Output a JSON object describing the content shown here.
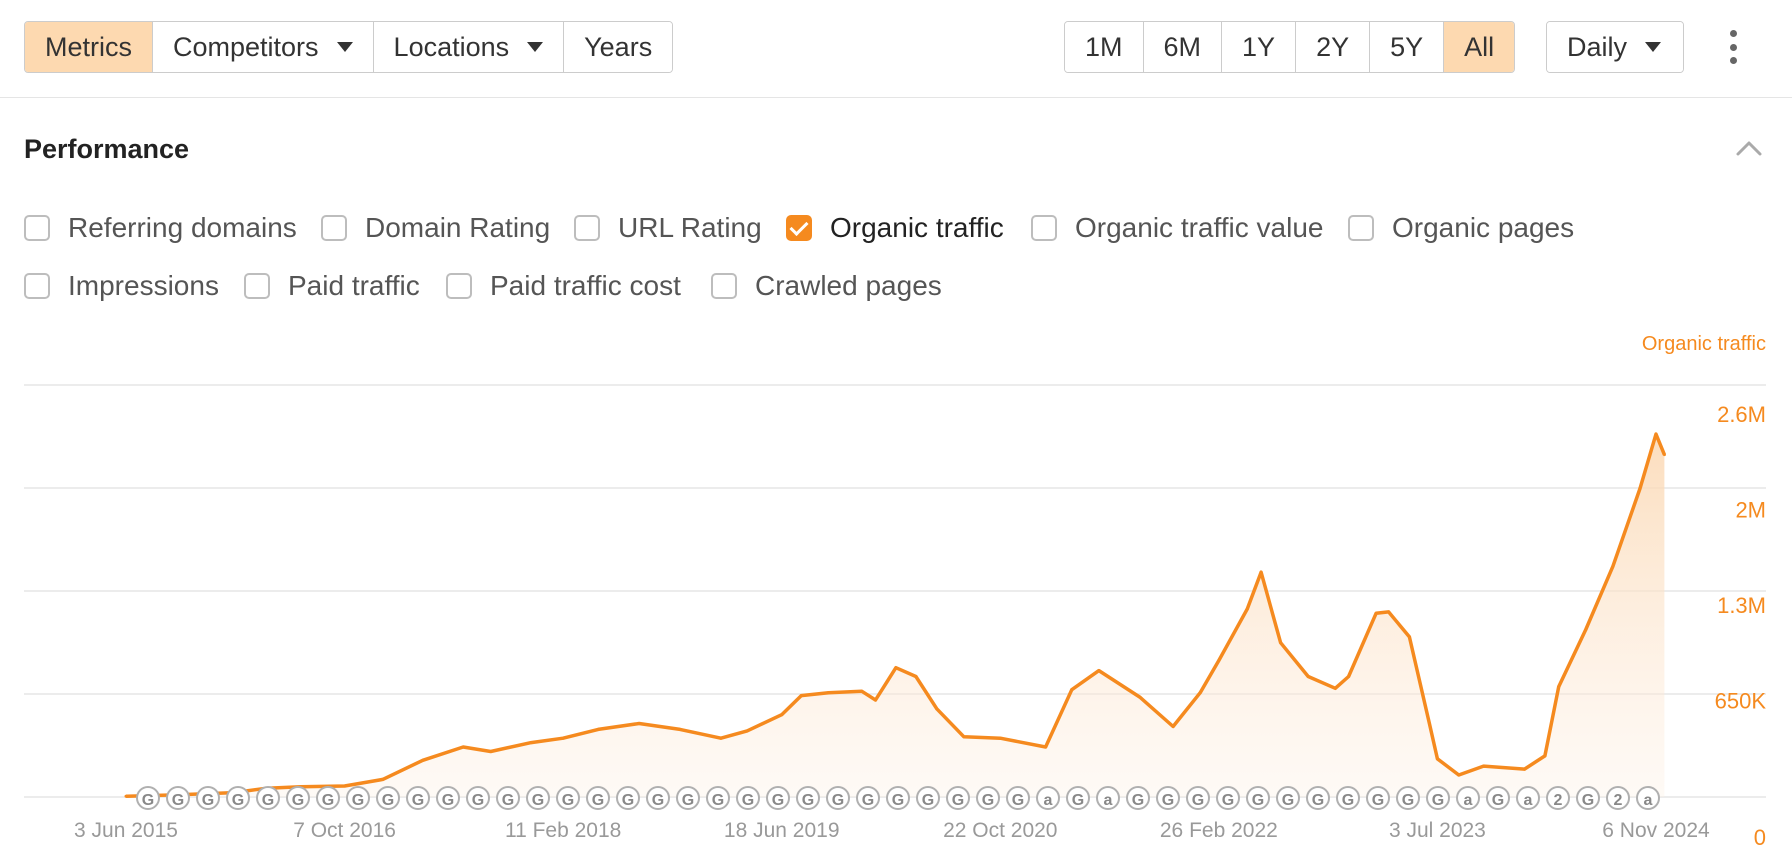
{
  "toolbar": {
    "left_buttons": [
      {
        "label": "Metrics",
        "active": true,
        "dropdown": false
      },
      {
        "label": "Competitors",
        "active": false,
        "dropdown": true
      },
      {
        "label": "Locations",
        "active": false,
        "dropdown": true
      },
      {
        "label": "Years",
        "active": false,
        "dropdown": false
      }
    ],
    "ranges": [
      {
        "label": "1M",
        "active": false
      },
      {
        "label": "6M",
        "active": false
      },
      {
        "label": "1Y",
        "active": false
      },
      {
        "label": "2Y",
        "active": false
      },
      {
        "label": "5Y",
        "active": false
      },
      {
        "label": "All",
        "active": true
      }
    ],
    "interval": {
      "label": "Daily"
    },
    "more_icon": "kebab-vertical-icon"
  },
  "section": {
    "title": "Performance",
    "collapse_icon": "chevron-up-icon"
  },
  "metrics": {
    "row1": [
      {
        "label": "Referring domains",
        "checked": false
      },
      {
        "label": "Domain Rating",
        "checked": false
      },
      {
        "label": "URL Rating",
        "checked": false
      },
      {
        "label": "Organic traffic",
        "checked": true
      },
      {
        "label": "Organic traffic value",
        "checked": false
      },
      {
        "label": "Organic pages",
        "checked": false
      }
    ],
    "row2": [
      {
        "label": "Impressions",
        "checked": false
      },
      {
        "label": "Paid traffic",
        "checked": false
      },
      {
        "label": "Paid traffic cost",
        "checked": false
      },
      {
        "label": "Crawled pages",
        "checked": false
      }
    ]
  },
  "colors": {
    "accent": "#f58a1f",
    "accent_fill": "#fdebd8",
    "grid": "#e6e6e6",
    "axis_text": "#999999",
    "marker_stroke": "#b0b0b0"
  },
  "chart_data": {
    "type": "area",
    "series": [
      {
        "name": "Organic traffic",
        "axis_title": "Organic traffic",
        "points": [
          [
            "2015-06-03",
            5000
          ],
          [
            "2015-10-01",
            15000
          ],
          [
            "2016-02-01",
            30000
          ],
          [
            "2016-04-15",
            60000
          ],
          [
            "2016-07-01",
            70000
          ],
          [
            "2016-10-07",
            75000
          ],
          [
            "2017-01-01",
            120000
          ],
          [
            "2017-04-01",
            250000
          ],
          [
            "2017-07-01",
            340000
          ],
          [
            "2017-09-01",
            310000
          ],
          [
            "2017-12-01",
            370000
          ],
          [
            "2018-02-11",
            400000
          ],
          [
            "2018-05-01",
            460000
          ],
          [
            "2018-08-01",
            500000
          ],
          [
            "2018-11-01",
            460000
          ],
          [
            "2019-02-01",
            400000
          ],
          [
            "2019-04-01",
            450000
          ],
          [
            "2019-06-18",
            560000
          ],
          [
            "2019-08-01",
            690000
          ],
          [
            "2019-10-01",
            710000
          ],
          [
            "2019-12-15",
            720000
          ],
          [
            "2020-01-15",
            660000
          ],
          [
            "2020-03-01",
            880000
          ],
          [
            "2020-04-15",
            820000
          ],
          [
            "2020-06-01",
            600000
          ],
          [
            "2020-08-01",
            410000
          ],
          [
            "2020-10-22",
            400000
          ],
          [
            "2021-02-01",
            340000
          ],
          [
            "2021-04-01",
            730000
          ],
          [
            "2021-06-01",
            860000
          ],
          [
            "2021-09-01",
            680000
          ],
          [
            "2021-11-15",
            480000
          ],
          [
            "2022-01-15",
            710000
          ],
          [
            "2022-02-26",
            930000
          ],
          [
            "2022-05-01",
            1280000
          ],
          [
            "2022-06-01",
            1530000
          ],
          [
            "2022-07-15",
            1050000
          ],
          [
            "2022-09-15",
            820000
          ],
          [
            "2022-11-15",
            740000
          ],
          [
            "2022-12-15",
            820000
          ],
          [
            "2023-02-15",
            1250000
          ],
          [
            "2023-03-15",
            1260000
          ],
          [
            "2023-05-01",
            1090000
          ],
          [
            "2023-06-15",
            500000
          ],
          [
            "2023-07-03",
            260000
          ],
          [
            "2023-08-20",
            150000
          ],
          [
            "2023-10-15",
            210000
          ],
          [
            "2024-01-15",
            190000
          ],
          [
            "2024-03-01",
            280000
          ],
          [
            "2024-04-01",
            750000
          ],
          [
            "2024-06-01",
            1140000
          ],
          [
            "2024-08-01",
            1570000
          ],
          [
            "2024-10-01",
            2100000
          ],
          [
            "2024-11-06",
            2470000
          ],
          [
            "2024-11-25",
            2330000
          ]
        ]
      }
    ],
    "x_ticks": [
      "3 Jun 2015",
      "7 Oct 2016",
      "11 Feb 2018",
      "18 Jun 2019",
      "22 Oct 2020",
      "26 Feb 2022",
      "3 Jul 2023",
      "6 Nov 2024"
    ],
    "y_ticks": [
      "0",
      "650K",
      "1.3M",
      "2M",
      "2.6M"
    ],
    "y_tick_values": [
      0,
      650000,
      1300000,
      1950000,
      2600000
    ],
    "x_range": [
      "2015-06-03",
      "2024-11-06"
    ],
    "ylim": [
      0,
      2600000
    ],
    "grid": true,
    "annotations": {
      "markers": [
        "G",
        "G",
        "G",
        "G",
        "G",
        "G",
        "G",
        "G",
        "G",
        "G",
        "G",
        "G",
        "G",
        "G",
        "G",
        "G",
        "G",
        "G",
        "G",
        "G",
        "G",
        "G",
        "G",
        "G",
        "G",
        "G",
        "G",
        "G",
        "G",
        "G",
        "a",
        "G",
        "a",
        "G",
        "G",
        "G",
        "G",
        "G",
        "G",
        "G",
        "G",
        "G",
        "G",
        "G",
        "a",
        "G",
        "a",
        "2",
        "G",
        "2",
        "a"
      ]
    }
  }
}
